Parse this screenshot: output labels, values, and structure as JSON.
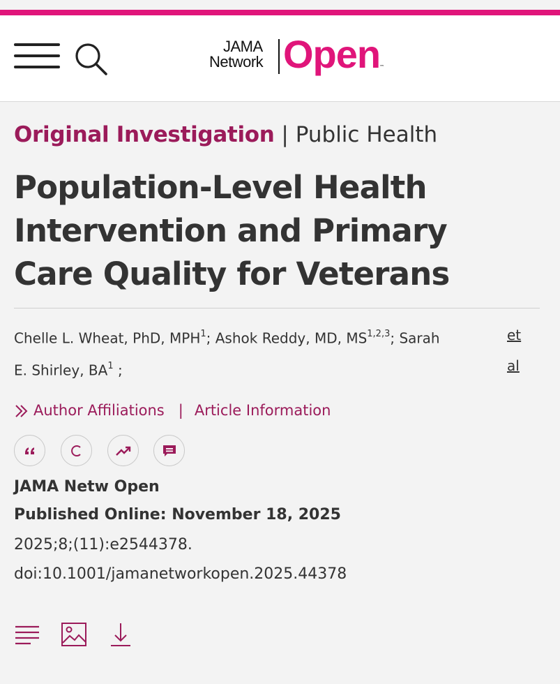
{
  "brand": {
    "logo_line1": "JAMA",
    "logo_line2": "Network",
    "logo_main": "Open",
    "logo_tm": "™",
    "accent_color": "#e0157a",
    "category_color": "#9b1b5a"
  },
  "header": {
    "menu_icon": "hamburger-menu-icon",
    "search_icon": "search-icon"
  },
  "article": {
    "category_primary": "Original Investigation",
    "category_separator": "|",
    "category_secondary": "Public Health",
    "title": "Population-Level Health Intervention and Primary Care Quality for Veterans",
    "authors": {
      "a1_name": "Chelle L. Wheat, PhD, MPH",
      "a1_sup": "1",
      "a2_name": "Ashok Reddy, MD, MS",
      "a2_sup": "1,2,3",
      "a3_name_part1": "Sarah",
      "a3_name_part2": "E. Shirley, BA",
      "a3_sup": "1",
      "separator": ";",
      "trailing": ";",
      "et_al_1": "et",
      "et_al_2": "al"
    },
    "links": {
      "author_affiliations": "Author Affiliations",
      "pipe": "|",
      "article_information": "Article Information"
    },
    "actions": [
      "quote-icon",
      "copyright-icon",
      "trending-icon",
      "comment-icon"
    ],
    "journal": "JAMA Netw Open",
    "published": "Published Online: November 18, 2025",
    "citation": "2025;8;(11):e2544378.",
    "doi": "doi:10.1001/jamanetworkopen.2025.44378"
  },
  "bottom_tools": [
    "article-text-icon",
    "figures-icon",
    "download-icon"
  ]
}
